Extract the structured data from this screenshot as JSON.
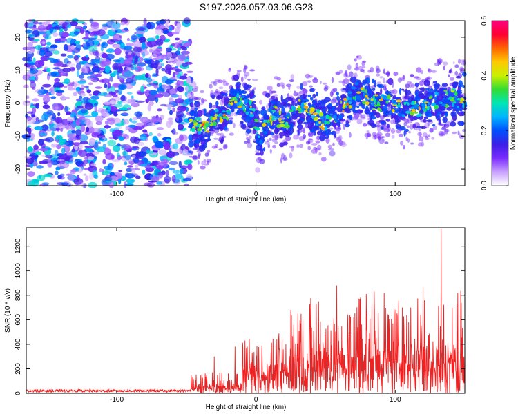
{
  "title": "S197.2026.057.03.06.G23",
  "chart_data": [
    {
      "type": "heatmap",
      "xlabel": "Height of straight line (km)",
      "ylabel": "Frequency (Hz)",
      "xlim": [
        -165,
        150
      ],
      "ylim": [
        -25,
        25
      ],
      "xticks": [
        -100,
        0,
        100
      ],
      "yticks": [
        -20,
        -10,
        0,
        10,
        20
      ],
      "xtick_labels": [
        "-100",
        "0",
        "100"
      ],
      "ytick_labels": [
        "-20",
        "-10",
        "0",
        "10",
        "20"
      ],
      "noise_region_x": [
        -165,
        -47
      ],
      "signal_ridge": [
        {
          "x": -45,
          "y": -6
        },
        {
          "x": -38,
          "y": -8
        },
        {
          "x": -30,
          "y": -5
        },
        {
          "x": -22,
          "y": -3
        },
        {
          "x": -15,
          "y": 1
        },
        {
          "x": -8,
          "y": 0
        },
        {
          "x": -2,
          "y": -2
        },
        {
          "x": 3,
          "y": -12
        },
        {
          "x": 8,
          "y": -5
        },
        {
          "x": 14,
          "y": -3
        },
        {
          "x": 20,
          "y": -7
        },
        {
          "x": 28,
          "y": -2
        },
        {
          "x": 35,
          "y": -1
        },
        {
          "x": 42,
          "y": -4
        },
        {
          "x": 50,
          "y": -6
        },
        {
          "x": 58,
          "y": -3
        },
        {
          "x": 65,
          "y": -1
        },
        {
          "x": 72,
          "y": 4
        },
        {
          "x": 80,
          "y": 1
        },
        {
          "x": 90,
          "y": 0
        },
        {
          "x": 100,
          "y": -1
        },
        {
          "x": 110,
          "y": -2
        },
        {
          "x": 120,
          "y": -1
        },
        {
          "x": 130,
          "y": 1
        },
        {
          "x": 140,
          "y": 2
        },
        {
          "x": 148,
          "y": 1
        }
      ],
      "colorbar": {
        "label": "Normalized spectral amplitude",
        "range": [
          0,
          0.6
        ],
        "ticks": [
          0.0,
          0.2,
          0.4,
          0.6
        ],
        "tick_labels": [
          "0.0",
          "0.2",
          "0.4",
          "0.6"
        ],
        "colors": [
          "#ffffff",
          "#c8a0ff",
          "#7b2cff",
          "#3c1ee6",
          "#0050ff",
          "#00b4ff",
          "#00e6b4",
          "#32dc32",
          "#c8f000",
          "#ffc800",
          "#ff6400",
          "#ff0032",
          "#ff0080"
        ]
      }
    },
    {
      "type": "line",
      "xlabel": "Height of straight line (km)",
      "ylabel": "SNR (10 * v/v)",
      "xlim": [
        -165,
        150
      ],
      "ylim": [
        0,
        1350
      ],
      "xticks": [
        -100,
        0,
        100
      ],
      "yticks": [
        0,
        200,
        400,
        600,
        800,
        1000,
        1200
      ],
      "xtick_labels": [
        "-100",
        "0",
        "100"
      ],
      "ytick_labels": [
        "0",
        "200",
        "400",
        "600",
        "800",
        "1000",
        "1200"
      ],
      "color": "#ee2222",
      "segments": [
        {
          "x_range": [
            -165,
            -47
          ],
          "baseline": 20,
          "noise": 15
        },
        {
          "x_range": [
            -47,
            -10
          ],
          "baseline": 40,
          "noise": 150
        },
        {
          "x_range": [
            -10,
            25
          ],
          "baseline": 180,
          "noise": 300
        },
        {
          "x_range": [
            25,
            150
          ],
          "baseline": 250,
          "noise": 600
        }
      ],
      "peaks": [
        {
          "x": -30,
          "y": 300
        },
        {
          "x": -15,
          "y": 380
        },
        {
          "x": -8,
          "y": 430
        },
        {
          "x": 25,
          "y": 680
        },
        {
          "x": 30,
          "y": 650
        },
        {
          "x": 45,
          "y": 750
        },
        {
          "x": 58,
          "y": 880
        },
        {
          "x": 75,
          "y": 780
        },
        {
          "x": 85,
          "y": 830
        },
        {
          "x": 92,
          "y": 820
        },
        {
          "x": 105,
          "y": 700
        },
        {
          "x": 120,
          "y": 860
        },
        {
          "x": 133,
          "y": 1340
        },
        {
          "x": 145,
          "y": 820
        }
      ]
    }
  ]
}
